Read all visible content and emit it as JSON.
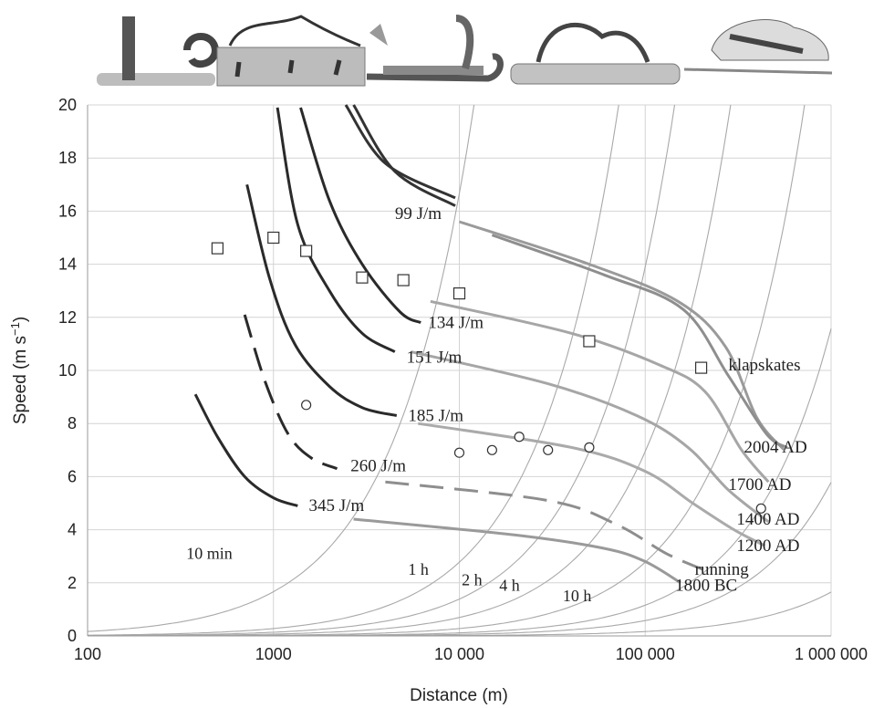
{
  "chart_data": {
    "type": "line",
    "x_scale": "log",
    "xlim": [
      100,
      1000000
    ],
    "ylim": [
      0,
      20
    ],
    "grid": true,
    "xlabel": "Distance (m)",
    "ylabel_main": "Speed (m s",
    "ylabel_sup": "−1",
    "ylabel_end": ")",
    "x_ticks": [
      {
        "value": 100,
        "label": "100"
      },
      {
        "value": 1000,
        "label": "1000"
      },
      {
        "value": 10000,
        "label": "10 000"
      },
      {
        "value": 100000,
        "label": "100 000"
      },
      {
        "value": 1000000,
        "label": "1 000 000"
      }
    ],
    "y_ticks": [
      {
        "value": 0,
        "label": "0"
      },
      {
        "value": 2,
        "label": "2"
      },
      {
        "value": 4,
        "label": "4"
      },
      {
        "value": 6,
        "label": "6"
      },
      {
        "value": 8,
        "label": "8"
      },
      {
        "value": 10,
        "label": "10"
      },
      {
        "value": 12,
        "label": "12"
      },
      {
        "value": 14,
        "label": "14"
      },
      {
        "value": 16,
        "label": "16"
      },
      {
        "value": 18,
        "label": "18"
      },
      {
        "value": 20,
        "label": "20"
      }
    ],
    "energy_curves": [
      {
        "label": "99 J/m",
        "color": "#333333",
        "points": [
          [
            2700,
            20
          ],
          [
            4500,
            17.5
          ],
          [
            9500,
            16.2
          ]
        ],
        "second": [
          [
            2450,
            20
          ],
          [
            4000,
            17.8
          ],
          [
            9500,
            16.5
          ]
        ],
        "label_at": [
          4500,
          15.7
        ]
      },
      {
        "label": "134 J/m",
        "color": "#2a2a2a",
        "points": [
          [
            1400,
            19.9
          ],
          [
            2000,
            16.4
          ],
          [
            3000,
            14
          ],
          [
            4800,
            12.2
          ],
          [
            6200,
            11.8
          ]
        ],
        "label_at": [
          6800,
          11.6
        ]
      },
      {
        "label": "151 J/m",
        "color": "#2a2a2a",
        "points": [
          [
            1050,
            19.9
          ],
          [
            1350,
            15.5
          ],
          [
            2000,
            13
          ],
          [
            3000,
            11.4
          ],
          [
            4500,
            10.7
          ]
        ],
        "label_at": [
          5200,
          10.3
        ]
      },
      {
        "label": "185 J/m",
        "color": "#2a2a2a",
        "points": [
          [
            720,
            17
          ],
          [
            950,
            13.5
          ],
          [
            1300,
            11
          ],
          [
            2000,
            9.4
          ],
          [
            3000,
            8.6
          ],
          [
            4600,
            8.3
          ]
        ],
        "label_at": [
          5300,
          8.1
        ]
      },
      {
        "label": "260 J/m",
        "color": "#2a2a2a",
        "dashed": true,
        "points": [
          [
            700,
            12.1
          ],
          [
            900,
            9.6
          ],
          [
            1200,
            7.6
          ],
          [
            1600,
            6.7
          ],
          [
            2200,
            6.3
          ]
        ],
        "label_at": [
          2600,
          6.2
        ]
      },
      {
        "label": "345 J/m",
        "color": "#2a2a2a",
        "points": [
          [
            380,
            9.1
          ],
          [
            500,
            7.5
          ],
          [
            700,
            6
          ],
          [
            1000,
            5.2
          ],
          [
            1350,
            4.9
          ]
        ],
        "label_at": [
          1550,
          4.7
        ]
      }
    ],
    "era_curves": [
      {
        "label": "2004 AD",
        "color": "#9a9a9a",
        "points": [
          [
            10000,
            15.6
          ],
          [
            50000,
            14
          ],
          [
            150000,
            12.6
          ],
          [
            270000,
            10.9
          ],
          [
            400000,
            8.2
          ],
          [
            560000,
            7.0
          ]
        ],
        "label_at": [
          340000,
          6.9
        ]
      },
      {
        "label": "klapskates",
        "color": "#8e8e8e",
        "points": [
          [
            15000,
            15.1
          ],
          [
            60000,
            13.6
          ],
          [
            160000,
            12.3
          ],
          [
            280000,
            9.8
          ],
          [
            450000,
            7.6
          ],
          [
            580000,
            7.1
          ]
        ],
        "label_at": [
          280000,
          10
        ]
      },
      {
        "label": "1700 AD",
        "color": "#a6a6a6",
        "points": [
          [
            7000,
            12.6
          ],
          [
            40000,
            11.4
          ],
          [
            120000,
            10.2
          ],
          [
            210000,
            9.2
          ],
          [
            330000,
            7
          ],
          [
            460000,
            5.8
          ]
        ],
        "label_at": [
          280000,
          5.5
        ]
      },
      {
        "label": "1400 AD",
        "color": "#a6a6a6",
        "points": [
          [
            5500,
            10.7
          ],
          [
            30000,
            9.5
          ],
          [
            90000,
            8.3
          ],
          [
            170000,
            7.1
          ],
          [
            280000,
            5.5
          ],
          [
            460000,
            4.3
          ]
        ],
        "label_at": [
          310000,
          4.2
        ]
      },
      {
        "label": "1200 AD",
        "color": "#aaaaaa",
        "points": [
          [
            6000,
            8.0
          ],
          [
            40000,
            7.1
          ],
          [
            100000,
            6.2
          ],
          [
            180000,
            5
          ],
          [
            300000,
            4
          ],
          [
            440000,
            3.4
          ]
        ],
        "label_at": [
          310000,
          3.2
        ]
      },
      {
        "label": "1800 BC",
        "color": "#9a9a9a",
        "points": [
          [
            2700,
            4.4
          ],
          [
            20000,
            3.8
          ],
          [
            60000,
            3.3
          ],
          [
            100000,
            2.8
          ],
          [
            155000,
            2.0
          ]
        ],
        "label_at": [
          145000,
          1.7
        ]
      }
    ],
    "running": {
      "label": "running",
      "color": "#8e8e8e",
      "points": [
        [
          4000,
          5.8
        ],
        [
          30000,
          5.1
        ],
        [
          70000,
          4.2
        ],
        [
          130000,
          3.1
        ],
        [
          205000,
          2.5
        ]
      ],
      "label_at": [
        185000,
        2.3
      ]
    },
    "time_curves": [
      {
        "label": "10 min",
        "seconds": 600,
        "label_at": [
          340,
          2.9
        ]
      },
      {
        "label": "1 h",
        "seconds": 3600,
        "label_at": [
          5300,
          2.3
        ]
      },
      {
        "label": "2 h",
        "seconds": 7200,
        "label_at": [
          10300,
          1.9
        ]
      },
      {
        "label": "4 h",
        "seconds": 14400,
        "label_at": [
          16400,
          1.7
        ]
      },
      {
        "label": "10 h",
        "seconds": 36000,
        "label_at": [
          36000,
          1.3
        ]
      },
      {
        "label": "",
        "seconds": 86400
      },
      {
        "label": "",
        "seconds": 172800
      },
      {
        "label": "",
        "seconds": 604800
      }
    ],
    "square_markers": [
      [
        500,
        14.6
      ],
      [
        1000,
        15
      ],
      [
        1500,
        14.5
      ],
      [
        3000,
        13.5
      ],
      [
        5000,
        13.4
      ],
      [
        10000,
        12.9
      ],
      [
        50000,
        11.1
      ],
      [
        200000,
        10.1
      ]
    ],
    "circle_markers": [
      [
        1500,
        8.7
      ],
      [
        10000,
        6.9
      ],
      [
        15000,
        7.0
      ],
      [
        21000,
        7.5
      ],
      [
        30000,
        7.0
      ],
      [
        50000,
        7.1
      ],
      [
        420000,
        4.8
      ]
    ]
  }
}
